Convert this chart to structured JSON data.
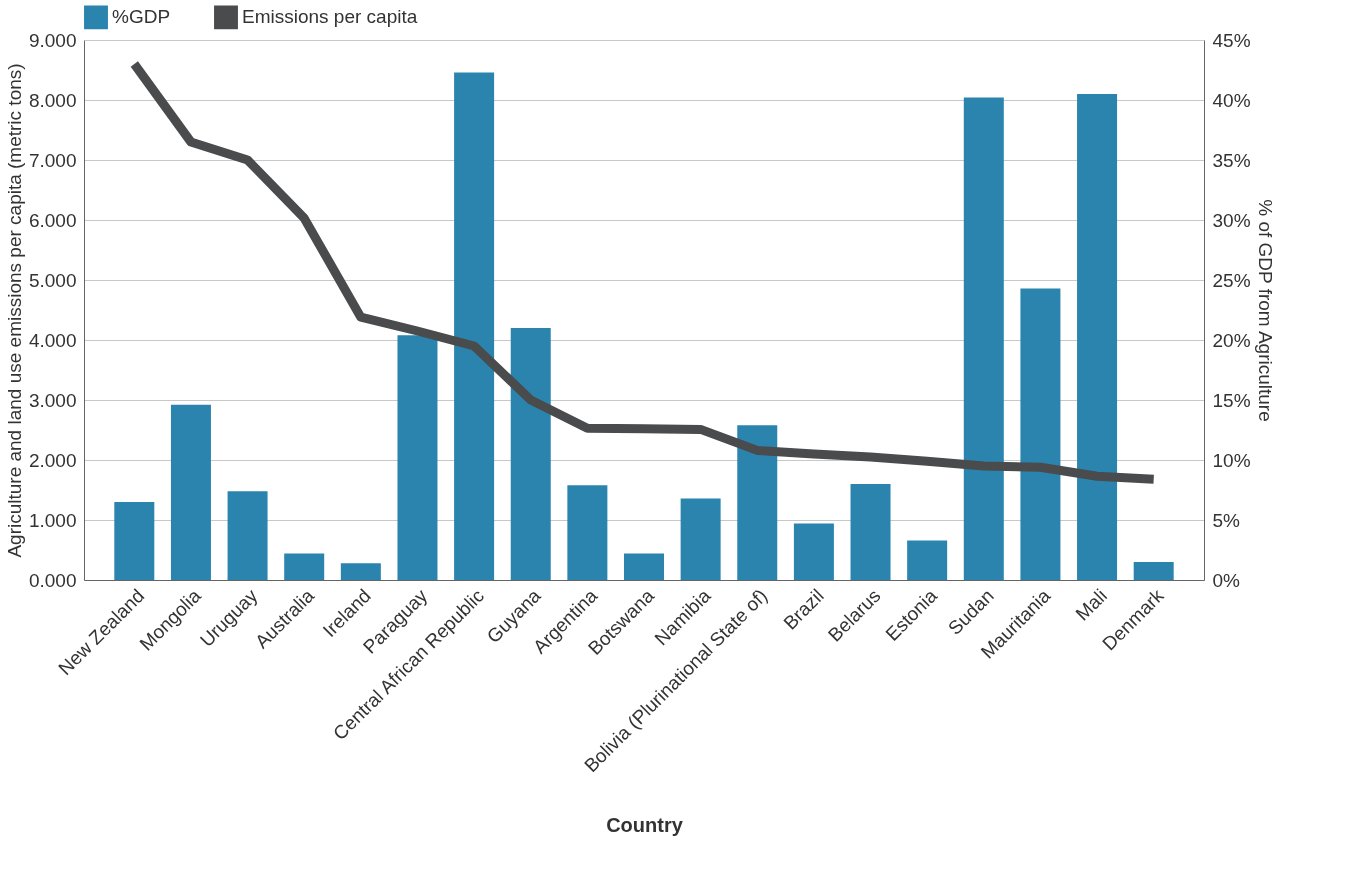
{
  "chart_data": {
    "type": "bar",
    "xlabel": "Country",
    "ylabel": "Agriculture and land use emissions per capita (metric tons)",
    "y2label": "% of GDP from Agriculture",
    "categories": [
      "New Zealand",
      "Mongolia",
      "Uruguay",
      "Australia",
      "Ireland",
      "Paraguay",
      "Central African Republic",
      "Guyana",
      "Argentina",
      "Botswana",
      "Namibia",
      "Bolivia (Plurinational State of)",
      "Brazil",
      "Belarus",
      "Estonia",
      "Sudan",
      "Mauritania",
      "Mali",
      "Denmark"
    ],
    "series": [
      {
        "name": "%GDP",
        "axis": "y2",
        "color": "#2a84ad",
        "values": [
          6.5,
          14.6,
          7.4,
          2.2,
          1.4,
          20.4,
          42.3,
          21.0,
          7.9,
          2.2,
          6.8,
          12.9,
          4.7,
          8.0,
          3.3,
          40.2,
          24.3,
          40.5,
          1.5
        ]
      },
      {
        "name": "Emissions per capita",
        "type": "line",
        "axis": "y",
        "color": "#4a4b4d",
        "values": [
          8.6,
          7.3,
          7.0,
          6.03,
          4.38,
          4.15,
          3.9,
          3.0,
          2.53,
          2.52,
          2.51,
          2.16,
          2.1,
          2.05,
          1.98,
          1.9,
          1.88,
          1.73,
          1.68
        ]
      }
    ],
    "ylim": [
      0,
      9
    ],
    "yticks": [
      {
        "value": 0,
        "label": "0.000"
      },
      {
        "value": 1,
        "label": "1.000"
      },
      {
        "value": 2,
        "label": "2.000"
      },
      {
        "value": 3,
        "label": "3.000"
      },
      {
        "value": 4,
        "label": "4.000"
      },
      {
        "value": 5,
        "label": "5.000"
      },
      {
        "value": 6,
        "label": "6.000"
      },
      {
        "value": 7,
        "label": "7.000"
      },
      {
        "value": 8,
        "label": "8.000"
      },
      {
        "value": 9,
        "label": "9.000"
      }
    ],
    "y2lim": [
      0,
      45
    ],
    "y2ticks": [
      {
        "value": 0,
        "label": "0%"
      },
      {
        "value": 5,
        "label": "5%"
      },
      {
        "value": 10,
        "label": "10%"
      },
      {
        "value": 15,
        "label": "15%"
      },
      {
        "value": 20,
        "label": "20%"
      },
      {
        "value": 25,
        "label": "25%"
      },
      {
        "value": 30,
        "label": "30%"
      },
      {
        "value": 35,
        "label": "35%"
      },
      {
        "value": 40,
        "label": "40%"
      },
      {
        "value": 45,
        "label": "45%"
      }
    ],
    "grid": "y",
    "legend": "top",
    "line_style": "solid"
  }
}
